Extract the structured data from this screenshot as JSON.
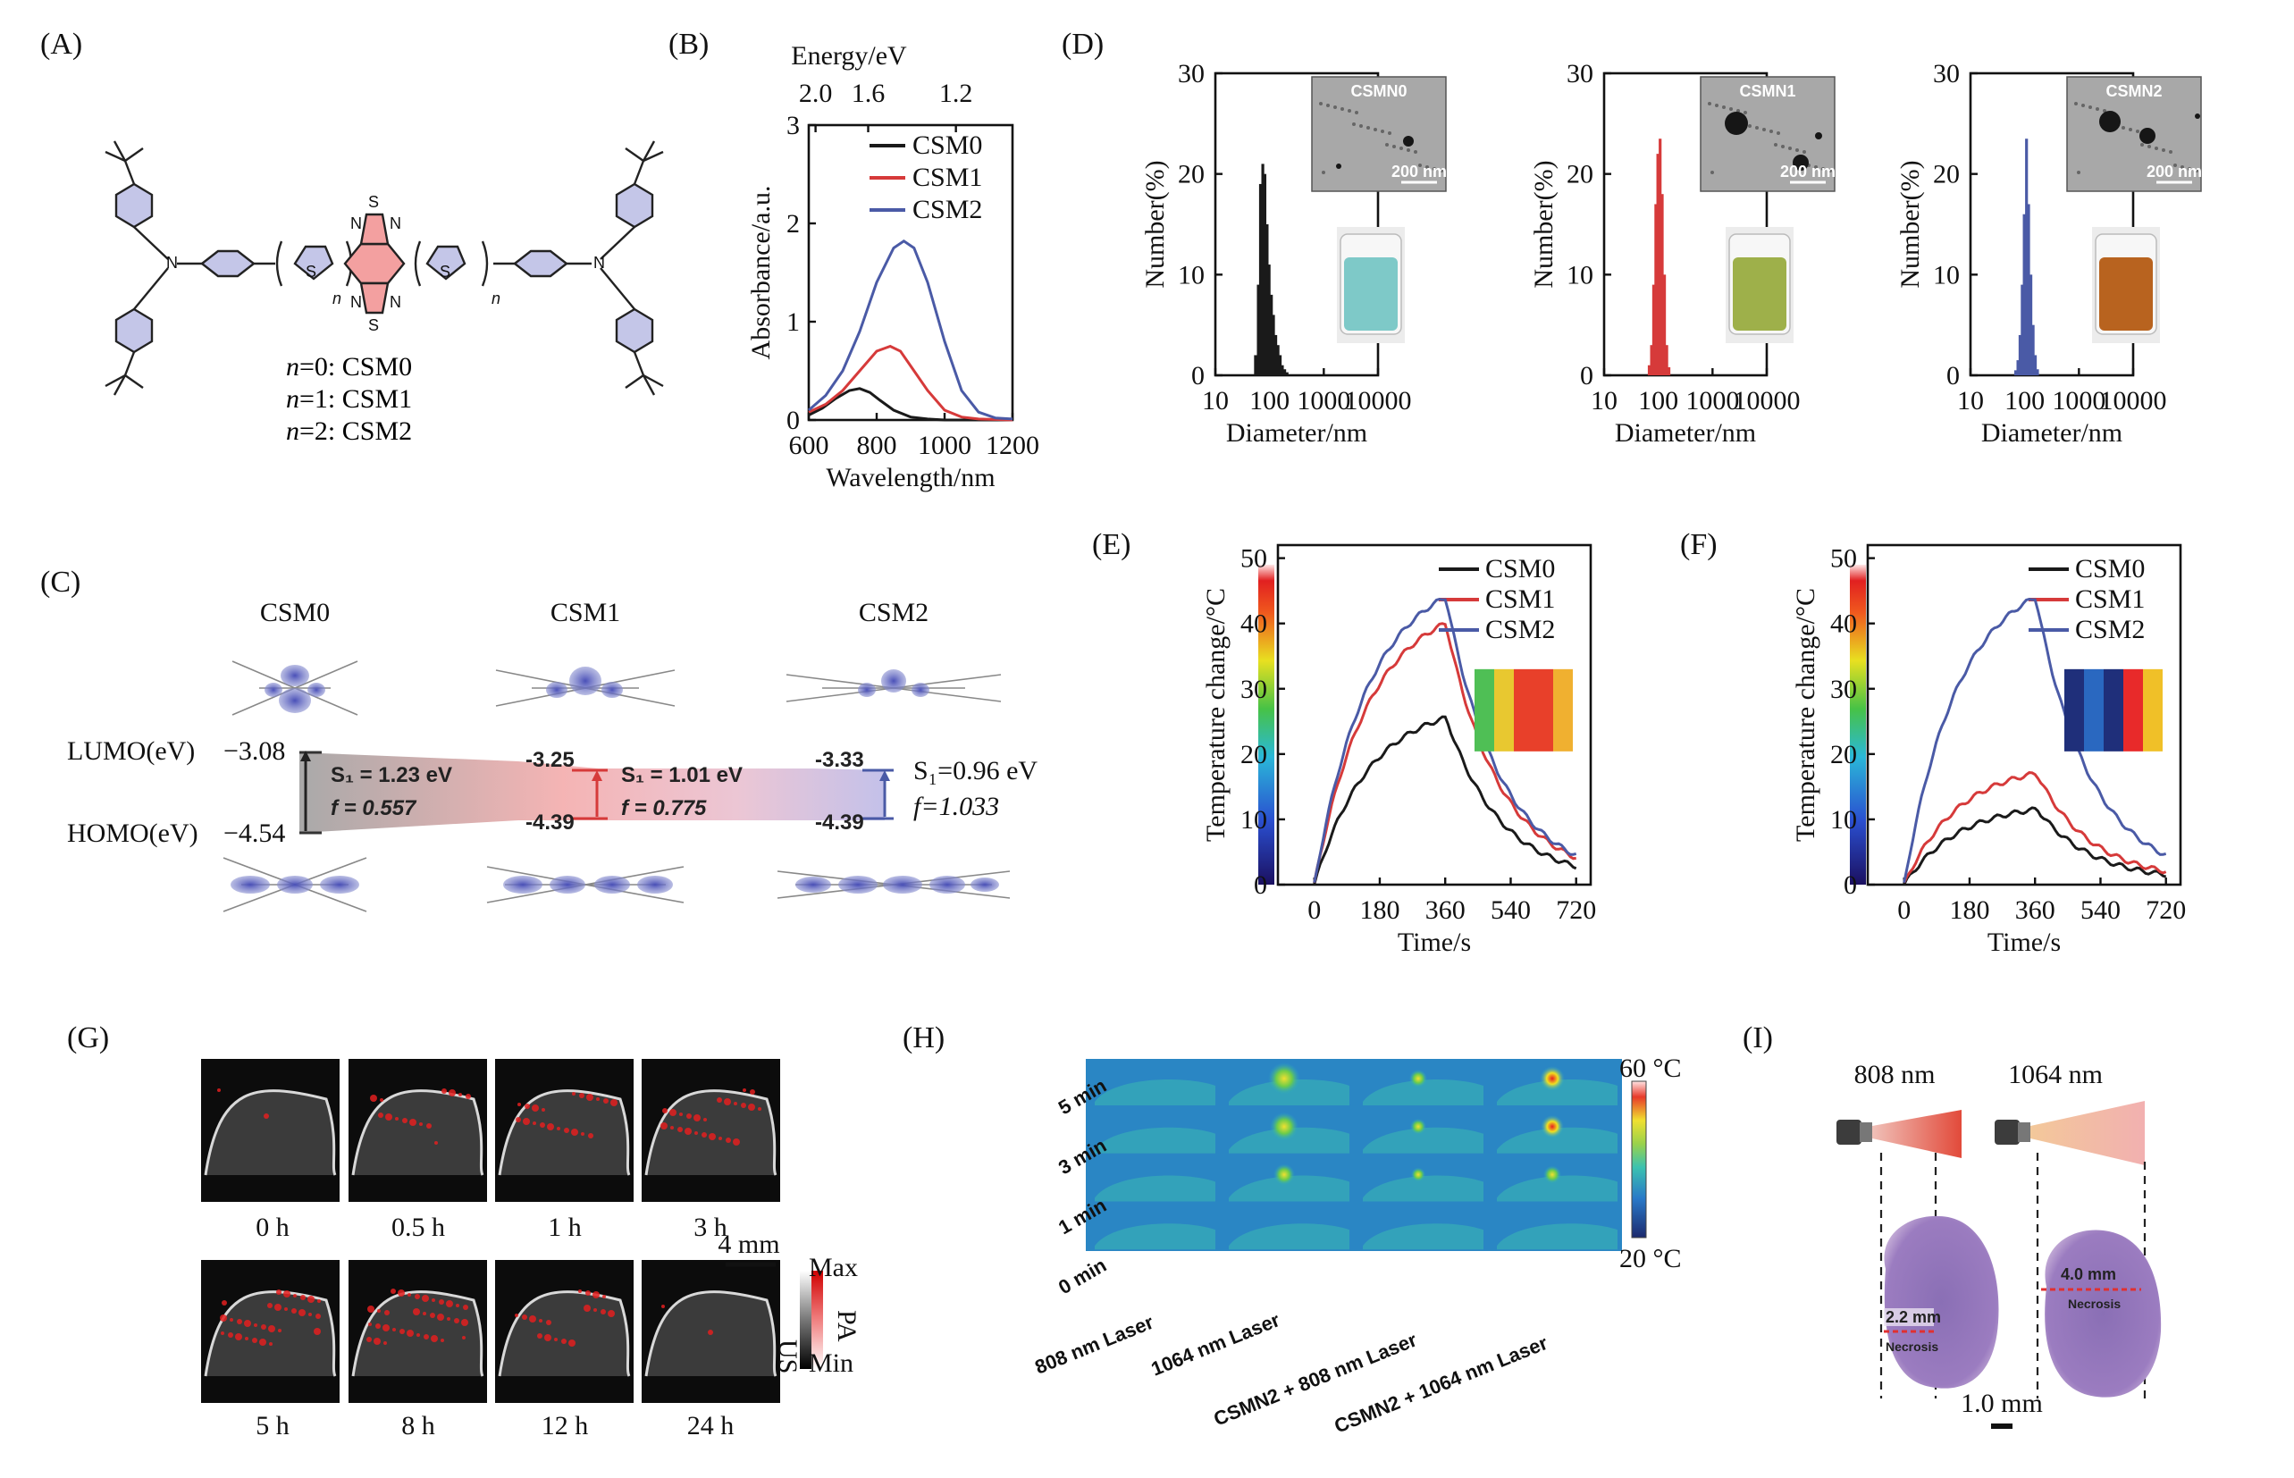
{
  "colors": {
    "csm0": "#1a1a1a",
    "csm1": "#d63a3a",
    "csm2": "#4a5aa6"
  },
  "panels": {
    "A": {
      "label": "(A)",
      "legend": [
        {
          "n": "n",
          "v": "=0: CSM0"
        },
        {
          "n": "n",
          "v": "=1: CSM1"
        },
        {
          "n": "n",
          "v": "=2: CSM2"
        }
      ],
      "subscript_n": "n"
    },
    "B": {
      "label": "(B)",
      "top_axis_title": "Energy/eV",
      "top_ticks": [
        "2.0",
        "1.6",
        "1.2"
      ],
      "xlabel": "Wavelength/nm",
      "ylabel": "Absorbance/a.u."
    },
    "C": {
      "label": "(C)",
      "names": [
        "CSM0",
        "CSM1",
        "CSM2"
      ],
      "lumo_label": "LUMO(eV)",
      "homo_label": "HOMO(eV)",
      "lumo": [
        "−3.08",
        "-3.25",
        "-3.33"
      ],
      "homo": [
        "−4.54",
        "-4.39",
        "-4.39"
      ],
      "s1": [
        "S₁ = 1.23 eV",
        "S₁ = 1.01 eV",
        "S₁=0.96 eV"
      ],
      "f": [
        "f = 0.557",
        "f = 0.775",
        "f=1.033"
      ]
    },
    "D": {
      "label": "(D)",
      "samples": [
        "CSMN0",
        "CSMN1",
        "CSMN2"
      ],
      "scale": "200 nm",
      "xlabel": "Diameter/nm",
      "ylabel": "Number(%)"
    },
    "E": {
      "label": "(E)",
      "xlabel": "Time/s",
      "ylabel": "Temperature change/°C"
    },
    "F": {
      "label": "(F)",
      "xlabel": "Time/s",
      "ylabel": "Temperature change/°C"
    },
    "G": {
      "label": "(G)",
      "times_top": [
        "0 h",
        "0.5 h",
        "1 h",
        "3 h"
      ],
      "times_bottom": [
        "5 h",
        "8 h",
        "12 h",
        "24 h"
      ],
      "scale": "4 mm",
      "cb_max": "Max",
      "cb_min": "Min",
      "cb_us": "US",
      "cb_pa": "PA"
    },
    "H": {
      "label": "(H)",
      "rows": [
        "5 min",
        "3 min",
        "1 min",
        "0 min"
      ],
      "cols": [
        "808 nm Laser",
        "1064 nm Laser",
        "CSMN2 + 808 nm Laser",
        "CSMN2 + 1064 nm Laser"
      ],
      "cb_max": "60 °C",
      "cb_min": "20 °C"
    },
    "I": {
      "label": "(I)",
      "lasers": [
        "808 nm",
        "1064 nm"
      ],
      "depths": [
        "2.2 mm",
        "4.0 mm"
      ],
      "necrosis": "Necrosis",
      "scale": "1.0 mm"
    }
  },
  "chart_data": [
    {
      "id": "B",
      "type": "line",
      "title": "",
      "xlabel": "Wavelength/nm",
      "ylabel": "Absorbance/a.u.",
      "xlim": [
        600,
        1200
      ],
      "ylim": [
        0,
        3
      ],
      "xticks": [
        600,
        800,
        1000,
        1200
      ],
      "yticks": [
        0,
        1,
        2,
        3
      ],
      "legend_placement": "top-right",
      "series": [
        {
          "name": "CSM0",
          "color": "#1a1a1a",
          "x": [
            600,
            640,
            680,
            720,
            750,
            780,
            810,
            850,
            900,
            950,
            1000,
            1100,
            1200
          ],
          "y": [
            0.05,
            0.12,
            0.22,
            0.3,
            0.32,
            0.28,
            0.2,
            0.1,
            0.03,
            0.01,
            0,
            0,
            0
          ]
        },
        {
          "name": "CSM1",
          "color": "#d63a3a",
          "x": [
            600,
            650,
            700,
            750,
            800,
            840,
            870,
            900,
            950,
            1000,
            1050,
            1100,
            1200
          ],
          "y": [
            0.08,
            0.16,
            0.3,
            0.5,
            0.7,
            0.75,
            0.7,
            0.55,
            0.3,
            0.1,
            0.03,
            0.01,
            0
          ]
        },
        {
          "name": "CSM2",
          "color": "#4a5aa6",
          "x": [
            600,
            650,
            700,
            750,
            800,
            850,
            880,
            910,
            950,
            1000,
            1050,
            1100,
            1150,
            1200
          ],
          "y": [
            0.1,
            0.25,
            0.5,
            0.9,
            1.4,
            1.75,
            1.82,
            1.75,
            1.4,
            0.8,
            0.3,
            0.08,
            0.02,
            0.01
          ]
        }
      ]
    },
    {
      "id": "D0",
      "type": "bar",
      "xlabel": "Diameter/nm",
      "ylabel": "Number(%)",
      "xscale": "log",
      "xlim": [
        10,
        10000
      ],
      "ylim": [
        0,
        30
      ],
      "xticks": [
        "10",
        "100",
        "1000",
        "10000"
      ],
      "yticks": [
        0,
        10,
        20,
        30
      ],
      "color": "#1a1a1a",
      "x": [
        55,
        62,
        68,
        75,
        82,
        90,
        98,
        108,
        118,
        130,
        143,
        157,
        172,
        190,
        210
      ],
      "values": [
        2,
        9,
        19,
        21,
        20,
        15,
        11,
        8,
        6,
        4,
        3,
        2,
        1,
        0.6,
        0.3
      ]
    },
    {
      "id": "D1",
      "type": "bar",
      "xlabel": "Diameter/nm",
      "ylabel": "Number(%)",
      "xscale": "log",
      "xlim": [
        10,
        10000
      ],
      "ylim": [
        0,
        30
      ],
      "xticks": [
        "10",
        "100",
        "1000",
        "10000"
      ],
      "yticks": [
        0,
        10,
        20,
        30
      ],
      "color": "#d63a3a",
      "x": [
        68,
        75,
        82,
        90,
        98,
        108,
        118,
        130,
        143,
        157
      ],
      "values": [
        1,
        3,
        9,
        17,
        22,
        23.5,
        18,
        10,
        3,
        0.8
      ]
    },
    {
      "id": "D2",
      "type": "bar",
      "xlabel": "Diameter/nm",
      "ylabel": "Number(%)",
      "xscale": "log",
      "xlim": [
        10,
        10000
      ],
      "ylim": [
        0,
        30
      ],
      "xticks": [
        "10",
        "100",
        "1000",
        "10000"
      ],
      "yticks": [
        0,
        10,
        20,
        30
      ],
      "color": "#4a5aa6",
      "x": [
        68,
        75,
        82,
        90,
        98,
        108,
        118,
        130,
        143,
        157,
        172
      ],
      "values": [
        0.5,
        1.5,
        4,
        9,
        16,
        23.5,
        17,
        10,
        5,
        2,
        0.6
      ]
    },
    {
      "id": "E",
      "type": "line",
      "xlabel": "Time/s",
      "ylabel": "Temperature change/°C",
      "xlim": [
        -100,
        760
      ],
      "ylim": [
        0,
        52
      ],
      "xticks": [
        0,
        180,
        360,
        540,
        720
      ],
      "yticks": [
        0,
        10,
        20,
        30,
        40,
        50
      ],
      "legend_placement": "top-right",
      "series": [
        {
          "name": "CSM0",
          "color": "#1a1a1a",
          "peak": 25.5
        },
        {
          "name": "CSM1",
          "color": "#d63a3a",
          "peak": 40
        },
        {
          "name": "CSM2",
          "color": "#4a5aa6",
          "peak": 44
        }
      ]
    },
    {
      "id": "F",
      "type": "line",
      "xlabel": "Time/s",
      "ylabel": "Temperature change/°C",
      "xlim": [
        -100,
        760
      ],
      "ylim": [
        0,
        52
      ],
      "xticks": [
        0,
        180,
        360,
        540,
        720
      ],
      "yticks": [
        0,
        10,
        20,
        30,
        40,
        50
      ],
      "legend_placement": "top-right",
      "series": [
        {
          "name": "CSM0",
          "color": "#1a1a1a",
          "peak": 11.5
        },
        {
          "name": "CSM1",
          "color": "#d63a3a",
          "peak": 17
        },
        {
          "name": "CSM2",
          "color": "#4a5aa6",
          "peak": 44
        }
      ]
    }
  ]
}
